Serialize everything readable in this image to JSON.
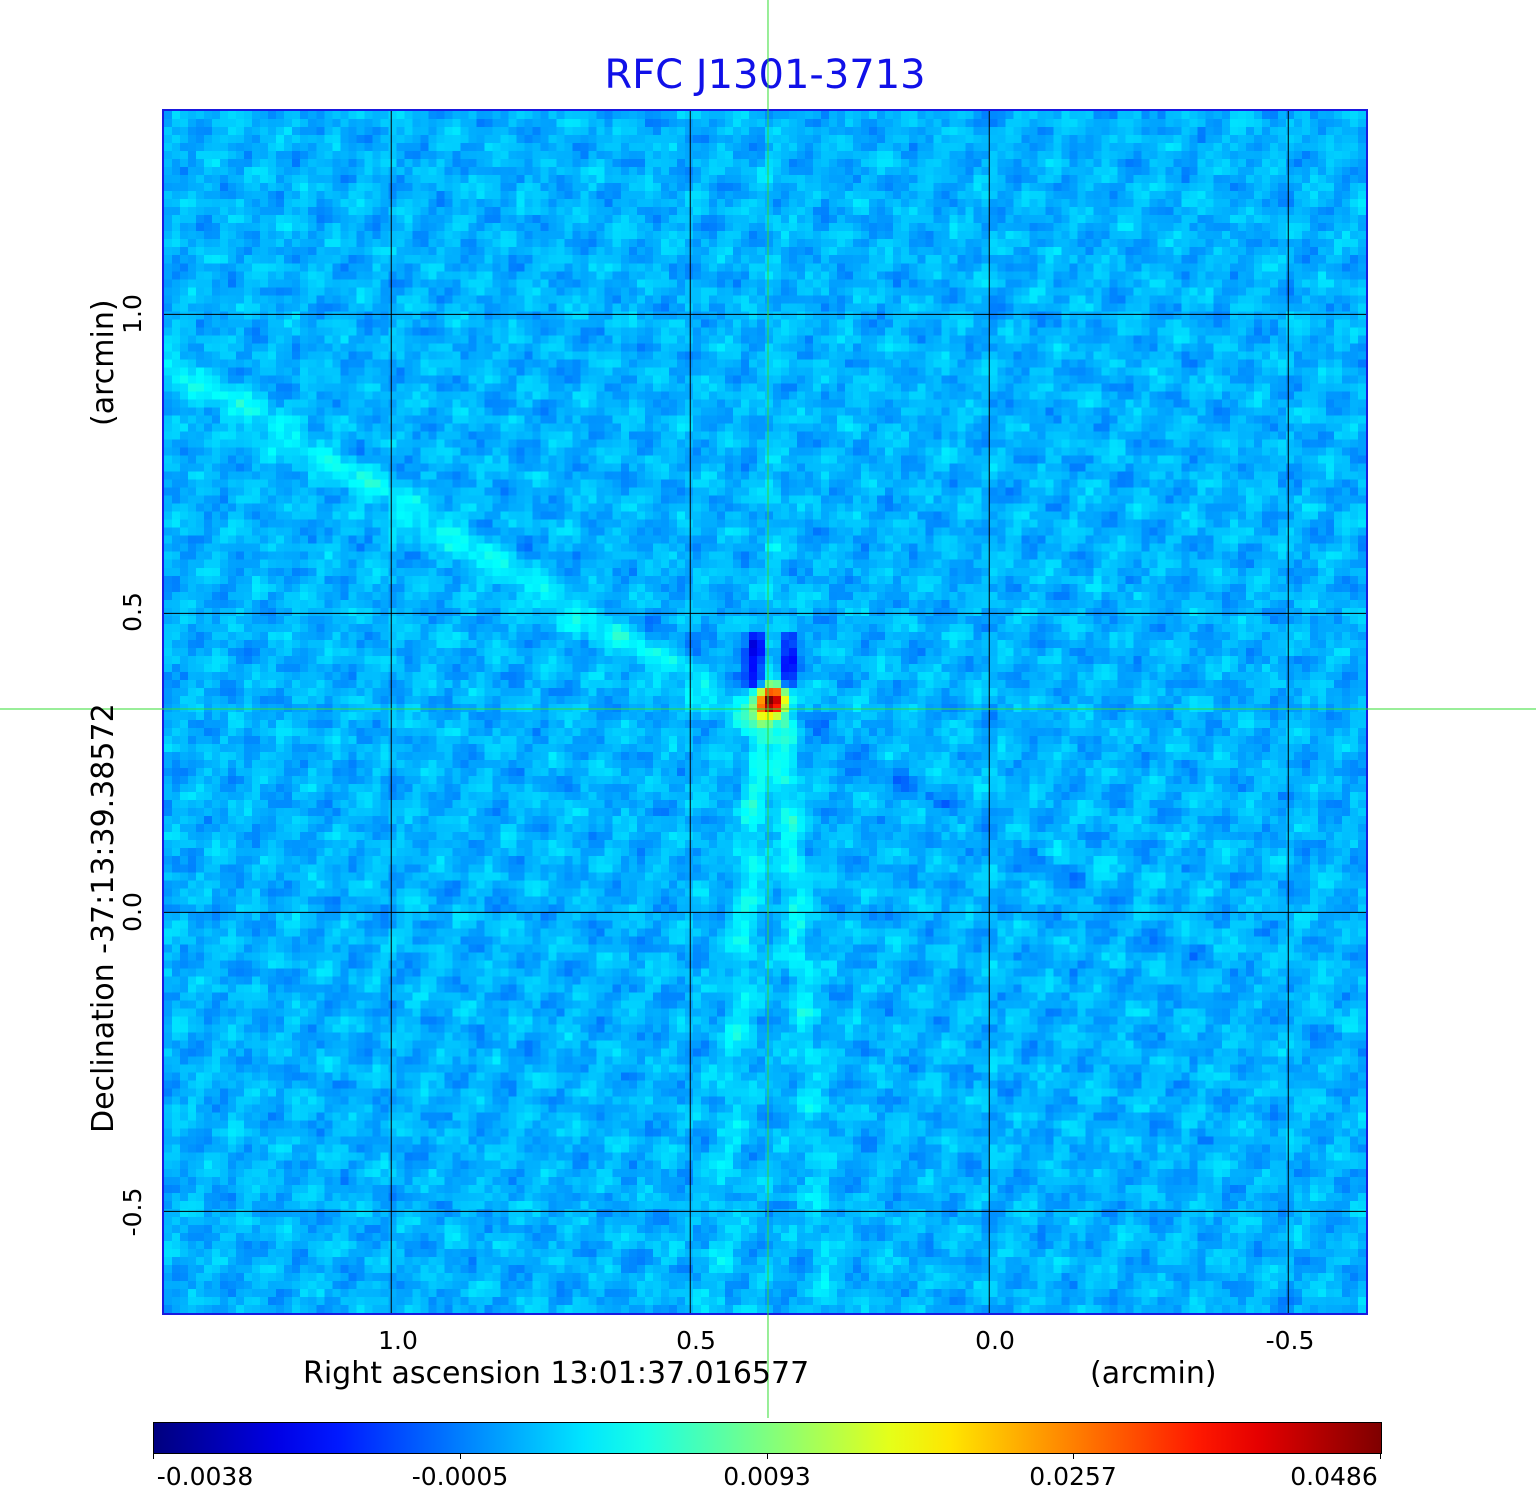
{
  "chart_data": {
    "type": "heatmap",
    "title": "RFC J1301-3713",
    "xlabel": "Right ascension  13:01:37.016577",
    "xunit": "(arcmin)",
    "ylabel": "Declination  -37:13:39.38572",
    "yunit": "(arcmin)",
    "xlim": [
      1.38,
      -0.63
    ],
    "ylim": [
      -0.67,
      1.34
    ],
    "x_ticks": [
      {
        "value": 1.0,
        "label": "1.0"
      },
      {
        "value": 0.5,
        "label": "0.5"
      },
      {
        "value": 0.0,
        "label": "0.0"
      },
      {
        "value": -0.5,
        "label": "-0.5"
      }
    ],
    "y_ticks": [
      {
        "value": 1.0,
        "label": "1.0"
      },
      {
        "value": 0.5,
        "label": "0.5"
      },
      {
        "value": 0.0,
        "label": "0.0"
      },
      {
        "value": -0.5,
        "label": "-0.5"
      }
    ],
    "grid": true,
    "crosshair": {
      "x": 0.37,
      "y": 0.34,
      "color": "#33dd33"
    },
    "source_peak": {
      "x": 0.37,
      "y": 0.36,
      "value": 0.0486
    },
    "colormap": "jet",
    "colorbar": {
      "placement": "bottom",
      "range": [
        -0.0038,
        0.0486
      ],
      "ticks": [
        "-0.0038",
        "-0.0005",
        "0.0093",
        "0.0257",
        "0.0486"
      ]
    },
    "colors": {
      "title": "#1010e8",
      "frame": "#1a1ae0",
      "background_level": "#1aa6f4"
    }
  }
}
